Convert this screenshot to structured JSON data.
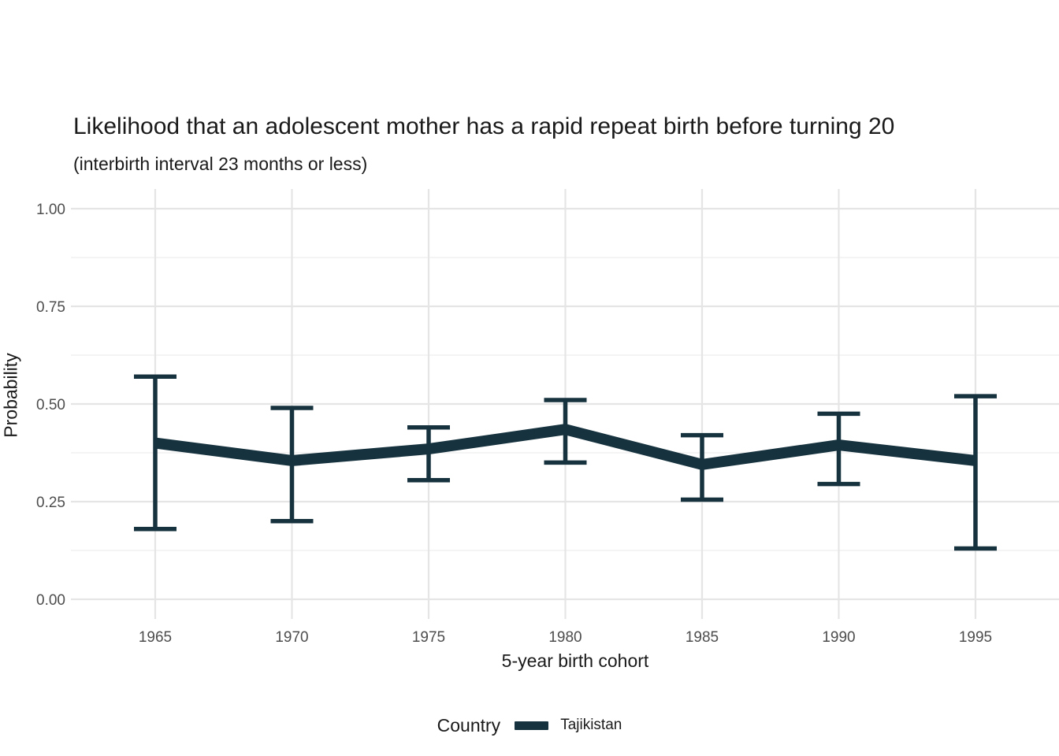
{
  "header": {
    "title": "Likelihood that an adolescent mother has a rapid repeat birth before turning 20",
    "subtitle": "(interbirth interval 23 months or less)"
  },
  "axes": {
    "x_label": "5-year birth cohort",
    "y_label": "Probability"
  },
  "legend": {
    "title": "Country",
    "series_label": "Tajikistan",
    "swatch_icon": "thick-line-key"
  },
  "colors": {
    "series": "#16323e",
    "grid_major": "#e5e5e5",
    "grid_minor": "#f1f1f1",
    "tick_text": "#4d4d4d",
    "title_text": "#1a1a1a"
  },
  "chart_data": {
    "type": "line",
    "title": "Likelihood that an adolescent mother has a rapid repeat birth before turning 20",
    "subtitle": "(interbirth interval 23 months or less)",
    "xlabel": "5-year birth cohort",
    "ylabel": "Probability",
    "ylim": [
      0,
      1
    ],
    "grid": "y-major+minor, x-major only",
    "legend_position": "bottom",
    "x": [
      1965,
      1970,
      1975,
      1980,
      1985,
      1990,
      1995
    ],
    "x_tick_labels": [
      "1965",
      "1970",
      "1975",
      "1980",
      "1985",
      "1990",
      "1995"
    ],
    "y_tick_values": [
      0,
      0.25,
      0.5,
      0.75,
      1
    ],
    "y_tick_labels": [
      "0.00",
      "0.25",
      "0.50",
      "0.75",
      "1.00"
    ],
    "y_minor_gridlines": [
      0.125,
      0.375,
      0.625,
      0.875
    ],
    "series": [
      {
        "name": "Tajikistan",
        "color": "#16323e",
        "values": [
          0.4,
          0.355,
          0.385,
          0.435,
          0.345,
          0.395,
          0.355
        ],
        "ci_low": [
          0.18,
          0.2,
          0.305,
          0.35,
          0.255,
          0.295,
          0.13
        ],
        "ci_high": [
          0.57,
          0.49,
          0.44,
          0.51,
          0.42,
          0.475,
          0.52
        ]
      }
    ]
  }
}
